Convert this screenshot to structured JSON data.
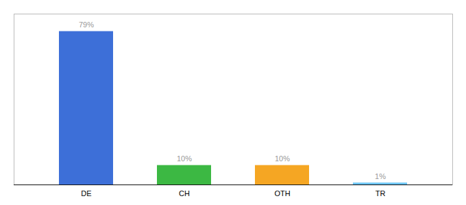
{
  "chart_data": {
    "type": "bar",
    "categories": [
      "DE",
      "CH",
      "OTH",
      "TR"
    ],
    "values": [
      79,
      10,
      10,
      1
    ],
    "value_labels": [
      "79%",
      "10%",
      "10%",
      "1%"
    ],
    "colors": [
      "#3d6fd8",
      "#3cb843",
      "#f5a623",
      "#6ec6f5"
    ],
    "ylim": [
      0,
      88
    ],
    "data_labels": true,
    "tick_labels": "x"
  }
}
